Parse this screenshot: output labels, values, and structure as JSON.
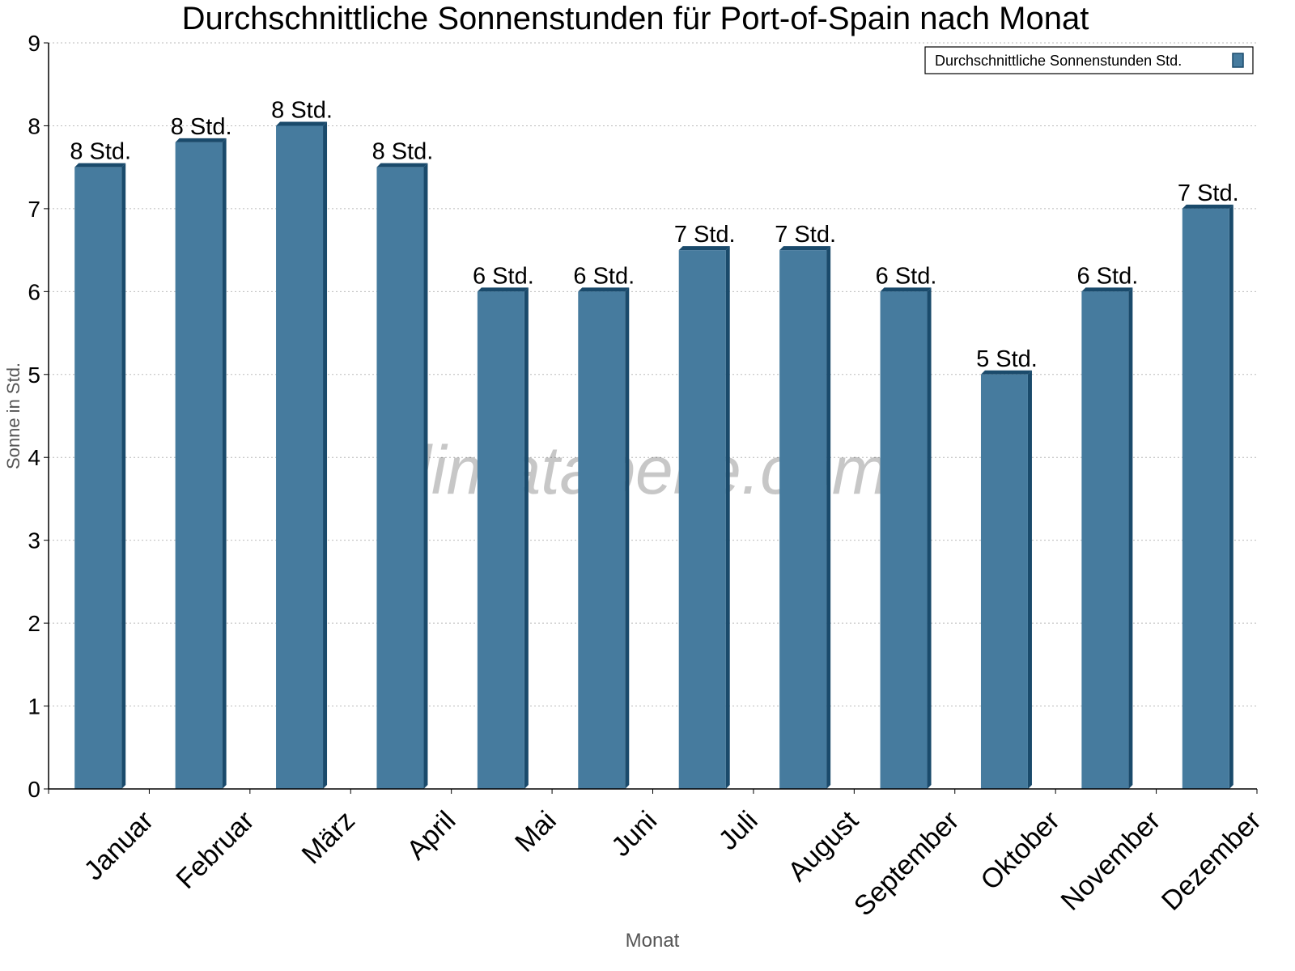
{
  "chart_data": {
    "type": "bar",
    "title": "Durchschnittliche Sonnenstunden für Port-of-Spain nach Monat",
    "xlabel": "Monat",
    "ylabel": "Sonne in Std.",
    "ylim": [
      0,
      9
    ],
    "yticks": [
      "0",
      "1",
      "2",
      "3",
      "4",
      "5",
      "6",
      "7",
      "8",
      "9"
    ],
    "grid": true,
    "legend_position": "top-right",
    "categories": [
      "Januar",
      "Februar",
      "März",
      "April",
      "Mai",
      "Juni",
      "Juli",
      "August",
      "September",
      "Oktober",
      "November",
      "Dezember"
    ],
    "series": [
      {
        "name": "Durchschnittliche Sonnenstunden Std.",
        "values": [
          7.5,
          7.8,
          8.0,
          7.5,
          6.0,
          6.0,
          6.5,
          6.5,
          6.0,
          5.0,
          6.0,
          7.0
        ],
        "labels": [
          "8 Std.",
          "8 Std.",
          "8 Std.",
          "8 Std.",
          "6 Std.",
          "6 Std.",
          "7 Std.",
          "7 Std.",
          "6 Std.",
          "5 Std.",
          "6 Std.",
          "7 Std."
        ],
        "color": "#467b9e",
        "side_color": "#1a4a6b"
      }
    ],
    "watermark": "klimatabelle.com"
  }
}
